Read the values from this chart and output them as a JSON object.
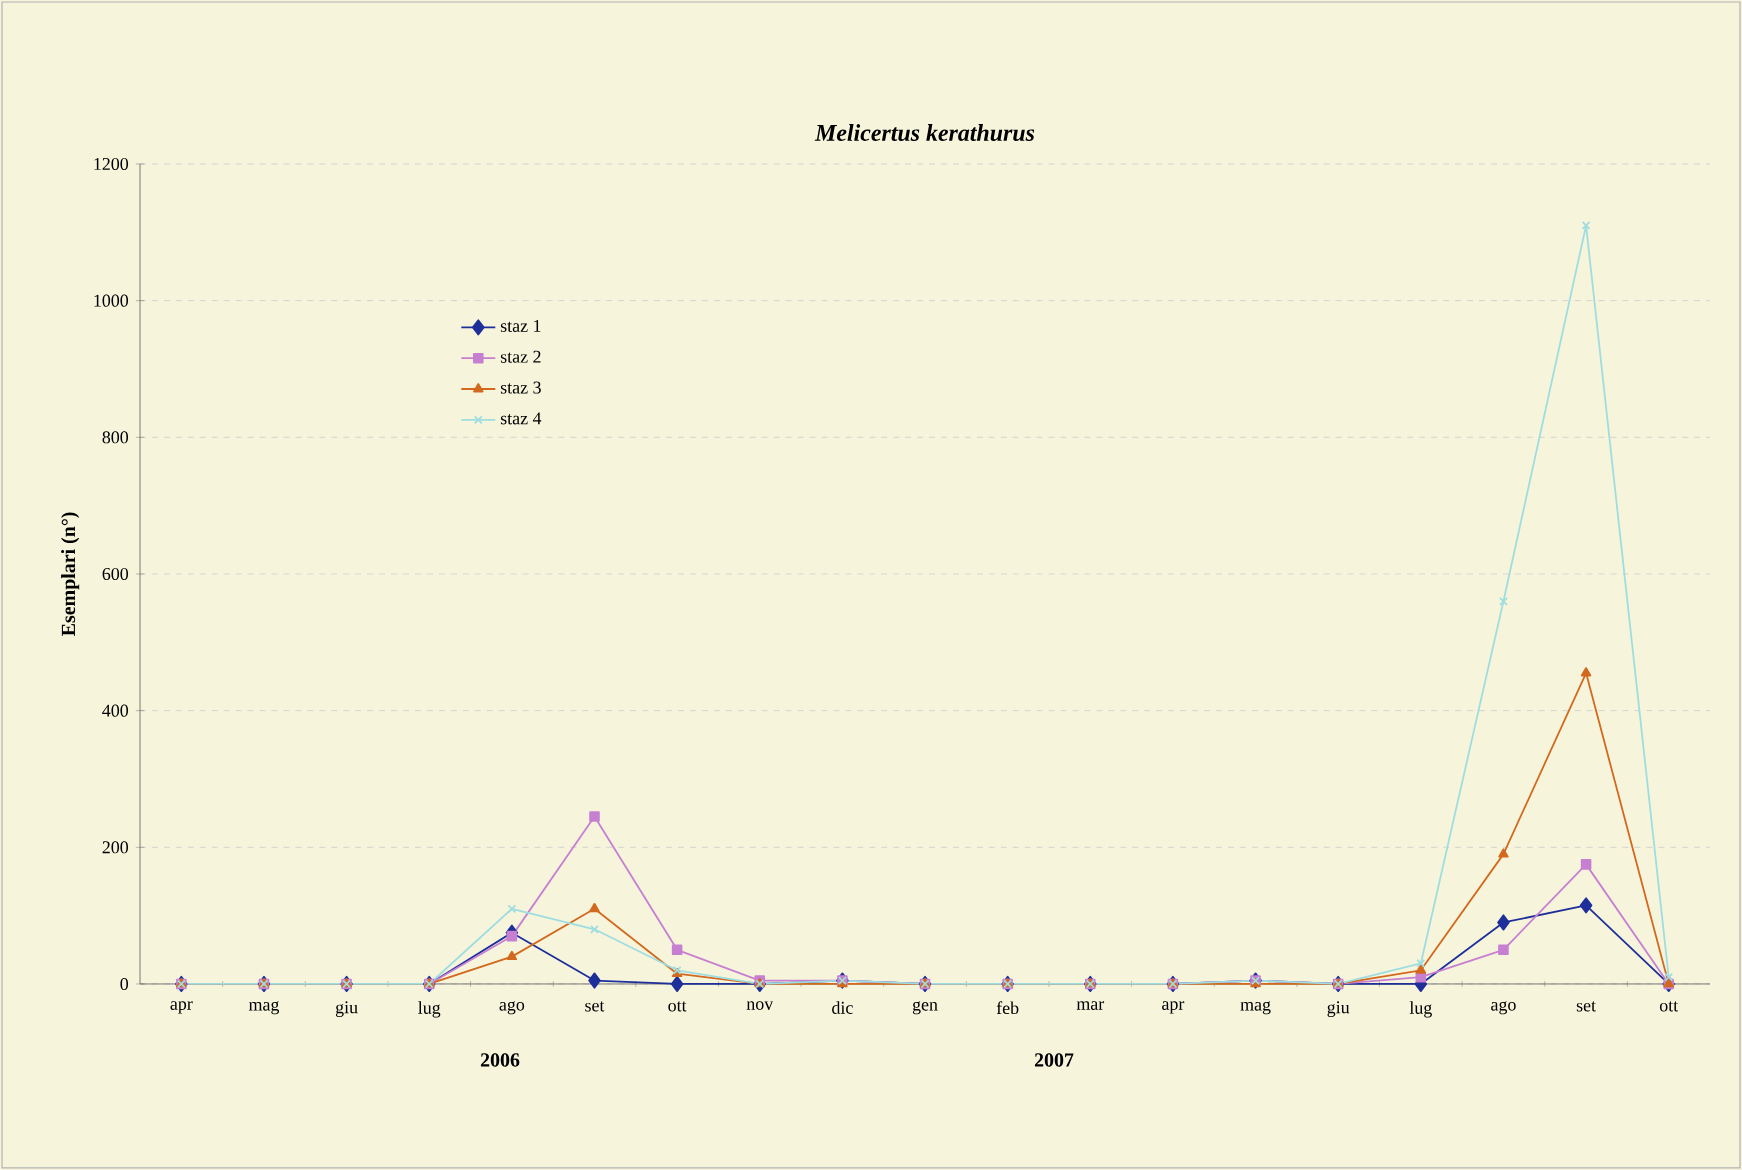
{
  "chart_data": {
    "type": "line",
    "title": "Melicertus kerathurus",
    "ylabel": "Esemplari (n°)",
    "categories": [
      "apr",
      "mag",
      "giu",
      "lug",
      "ago",
      "set",
      "ott",
      "nov",
      "dic",
      "gen",
      "feb",
      "mar",
      "apr",
      "mag",
      "giu",
      "lug",
      "ago",
      "set",
      "ott"
    ],
    "series": [
      {
        "name": "staz 1",
        "color": "#1f2f9a",
        "marker": "diamond",
        "values": [
          0,
          0,
          0,
          0,
          75,
          5,
          0,
          0,
          5,
          0,
          0,
          0,
          0,
          5,
          0,
          0,
          90,
          115,
          0
        ]
      },
      {
        "name": "staz 2",
        "color": "#c77fd1",
        "marker": "square",
        "values": [
          0,
          0,
          0,
          0,
          70,
          245,
          50,
          5,
          5,
          0,
          0,
          0,
          0,
          5,
          0,
          10,
          50,
          175,
          0
        ]
      },
      {
        "name": "staz 3",
        "color": "#d2691e",
        "marker": "triangle",
        "values": [
          0,
          0,
          0,
          0,
          40,
          110,
          15,
          0,
          0,
          0,
          0,
          0,
          0,
          0,
          0,
          20,
          190,
          455,
          0
        ]
      },
      {
        "name": "staz 4",
        "color": "#9fdde0",
        "marker": "cross",
        "values": [
          0,
          0,
          0,
          0,
          110,
          80,
          20,
          0,
          5,
          0,
          0,
          0,
          0,
          5,
          0,
          30,
          560,
          1110,
          10
        ]
      }
    ],
    "ylim": [
      0,
      1200
    ],
    "yticks": [
      0,
      200,
      400,
      600,
      800,
      1000,
      1200
    ],
    "grid": "y",
    "legend": "top left",
    "line_style": "solid",
    "annotations": [
      "2006",
      "2007"
    ]
  }
}
